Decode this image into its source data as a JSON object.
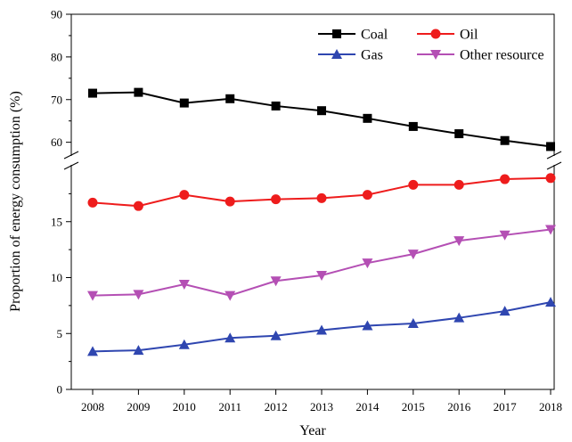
{
  "chart_data": {
    "type": "line",
    "title": "",
    "xlabel": "Year",
    "ylabel": "Proportion of energy consumption (%)",
    "x": [
      2008,
      2009,
      2010,
      2011,
      2012,
      2013,
      2014,
      2015,
      2016,
      2017,
      2018
    ],
    "y_axis": {
      "broken": true,
      "lower_range": [
        0,
        20
      ],
      "lower_ticks": [
        0,
        5,
        10,
        15
      ],
      "upper_range": [
        57,
        90
      ],
      "upper_ticks": [
        60,
        70,
        80,
        90
      ]
    },
    "grid": false,
    "legend_position": "top-right",
    "series": [
      {
        "name": "Coal",
        "color": "#000000",
        "marker": "square",
        "values": [
          71.5,
          71.7,
          69.2,
          70.2,
          68.5,
          67.4,
          65.6,
          63.7,
          62.0,
          60.4,
          59.0
        ]
      },
      {
        "name": "Oil",
        "color": "#ee1c1c",
        "marker": "circle",
        "values": [
          16.7,
          16.4,
          17.4,
          16.8,
          17.0,
          17.1,
          17.4,
          18.3,
          18.3,
          18.8,
          18.9
        ]
      },
      {
        "name": "Gas",
        "color": "#2f46b0",
        "marker": "triangle-up",
        "values": [
          3.4,
          3.5,
          4.0,
          4.6,
          4.8,
          5.3,
          5.7,
          5.9,
          6.4,
          7.0,
          7.8
        ]
      },
      {
        "name": "Other resource",
        "color": "#b44fb4",
        "marker": "triangle-down",
        "values": [
          8.4,
          8.5,
          9.4,
          8.4,
          9.7,
          10.2,
          11.3,
          12.1,
          13.3,
          13.8,
          14.3
        ]
      }
    ]
  }
}
